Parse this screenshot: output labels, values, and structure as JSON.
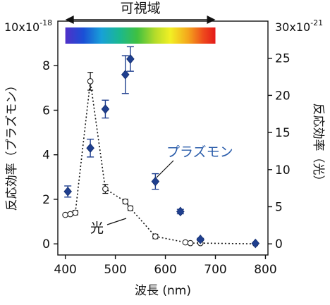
{
  "chart_data": {
    "type": "scatter",
    "x": {
      "label": "波長 (nm)",
      "ticks": [
        400,
        500,
        600,
        700,
        800
      ],
      "range": [
        385,
        805
      ]
    },
    "y_left": {
      "label": "反応効率（プラズモン）",
      "exponent_label": "10x10",
      "exponent_sup": "-18",
      "ticks": [
        0,
        2,
        4,
        6,
        8
      ],
      "range": [
        -0.5,
        10
      ]
    },
    "y_right": {
      "label": "反応効率（光）",
      "exponent_label": "30x10",
      "exponent_sup": "-21",
      "ticks": [
        0,
        5,
        10,
        15,
        20,
        25
      ],
      "range": [
        -1.5,
        30
      ]
    },
    "visible_band": {
      "label": "可視域",
      "x_range": [
        400,
        700
      ]
    },
    "series": [
      {
        "name": "プラズモン",
        "axis": "left",
        "marker": "diamond",
        "color": "#1f3f8f",
        "points": [
          {
            "x": 405,
            "y": 2.35,
            "err": 0.25
          },
          {
            "x": 450,
            "y": 4.3,
            "err": 0.4
          },
          {
            "x": 480,
            "y": 6.05,
            "err": 0.4
          },
          {
            "x": 520,
            "y": 7.6,
            "err": 0.85
          },
          {
            "x": 530,
            "y": 8.3,
            "err": 0.55
          },
          {
            "x": 580,
            "y": 2.8,
            "err": 0.35
          },
          {
            "x": 630,
            "y": 1.45,
            "err": 0.1
          },
          {
            "x": 670,
            "y": 0.2,
            "err": 0.05
          },
          {
            "x": 780,
            "y": 0.02,
            "err": 0.0
          }
        ]
      },
      {
        "name": "光",
        "axis": "right",
        "marker": "circle",
        "color": "#333333",
        "line": "dotted",
        "points": [
          {
            "x": 400,
            "y": 3.9,
            "err": 0.0
          },
          {
            "x": 410,
            "y": 4.0,
            "err": 0.2
          },
          {
            "x": 420,
            "y": 4.2,
            "err": 0.3
          },
          {
            "x": 450,
            "y": 21.9,
            "err": 1.2
          },
          {
            "x": 480,
            "y": 7.4,
            "err": 0.6
          },
          {
            "x": 520,
            "y": 5.7,
            "err": 0.3
          },
          {
            "x": 530,
            "y": 4.8,
            "err": 0.3
          },
          {
            "x": 580,
            "y": 1.0,
            "err": 0.3
          },
          {
            "x": 640,
            "y": 0.2,
            "err": 0.0
          },
          {
            "x": 650,
            "y": 0.1,
            "err": 0.0
          },
          {
            "x": 670,
            "y": 0.1,
            "err": 0.0
          },
          {
            "x": 780,
            "y": 0.0,
            "err": 0.0
          }
        ]
      }
    ],
    "annotations": [
      {
        "text": "プラズモン",
        "color": "#2a5caa"
      },
      {
        "text": "光",
        "color": "#111111"
      }
    ]
  }
}
